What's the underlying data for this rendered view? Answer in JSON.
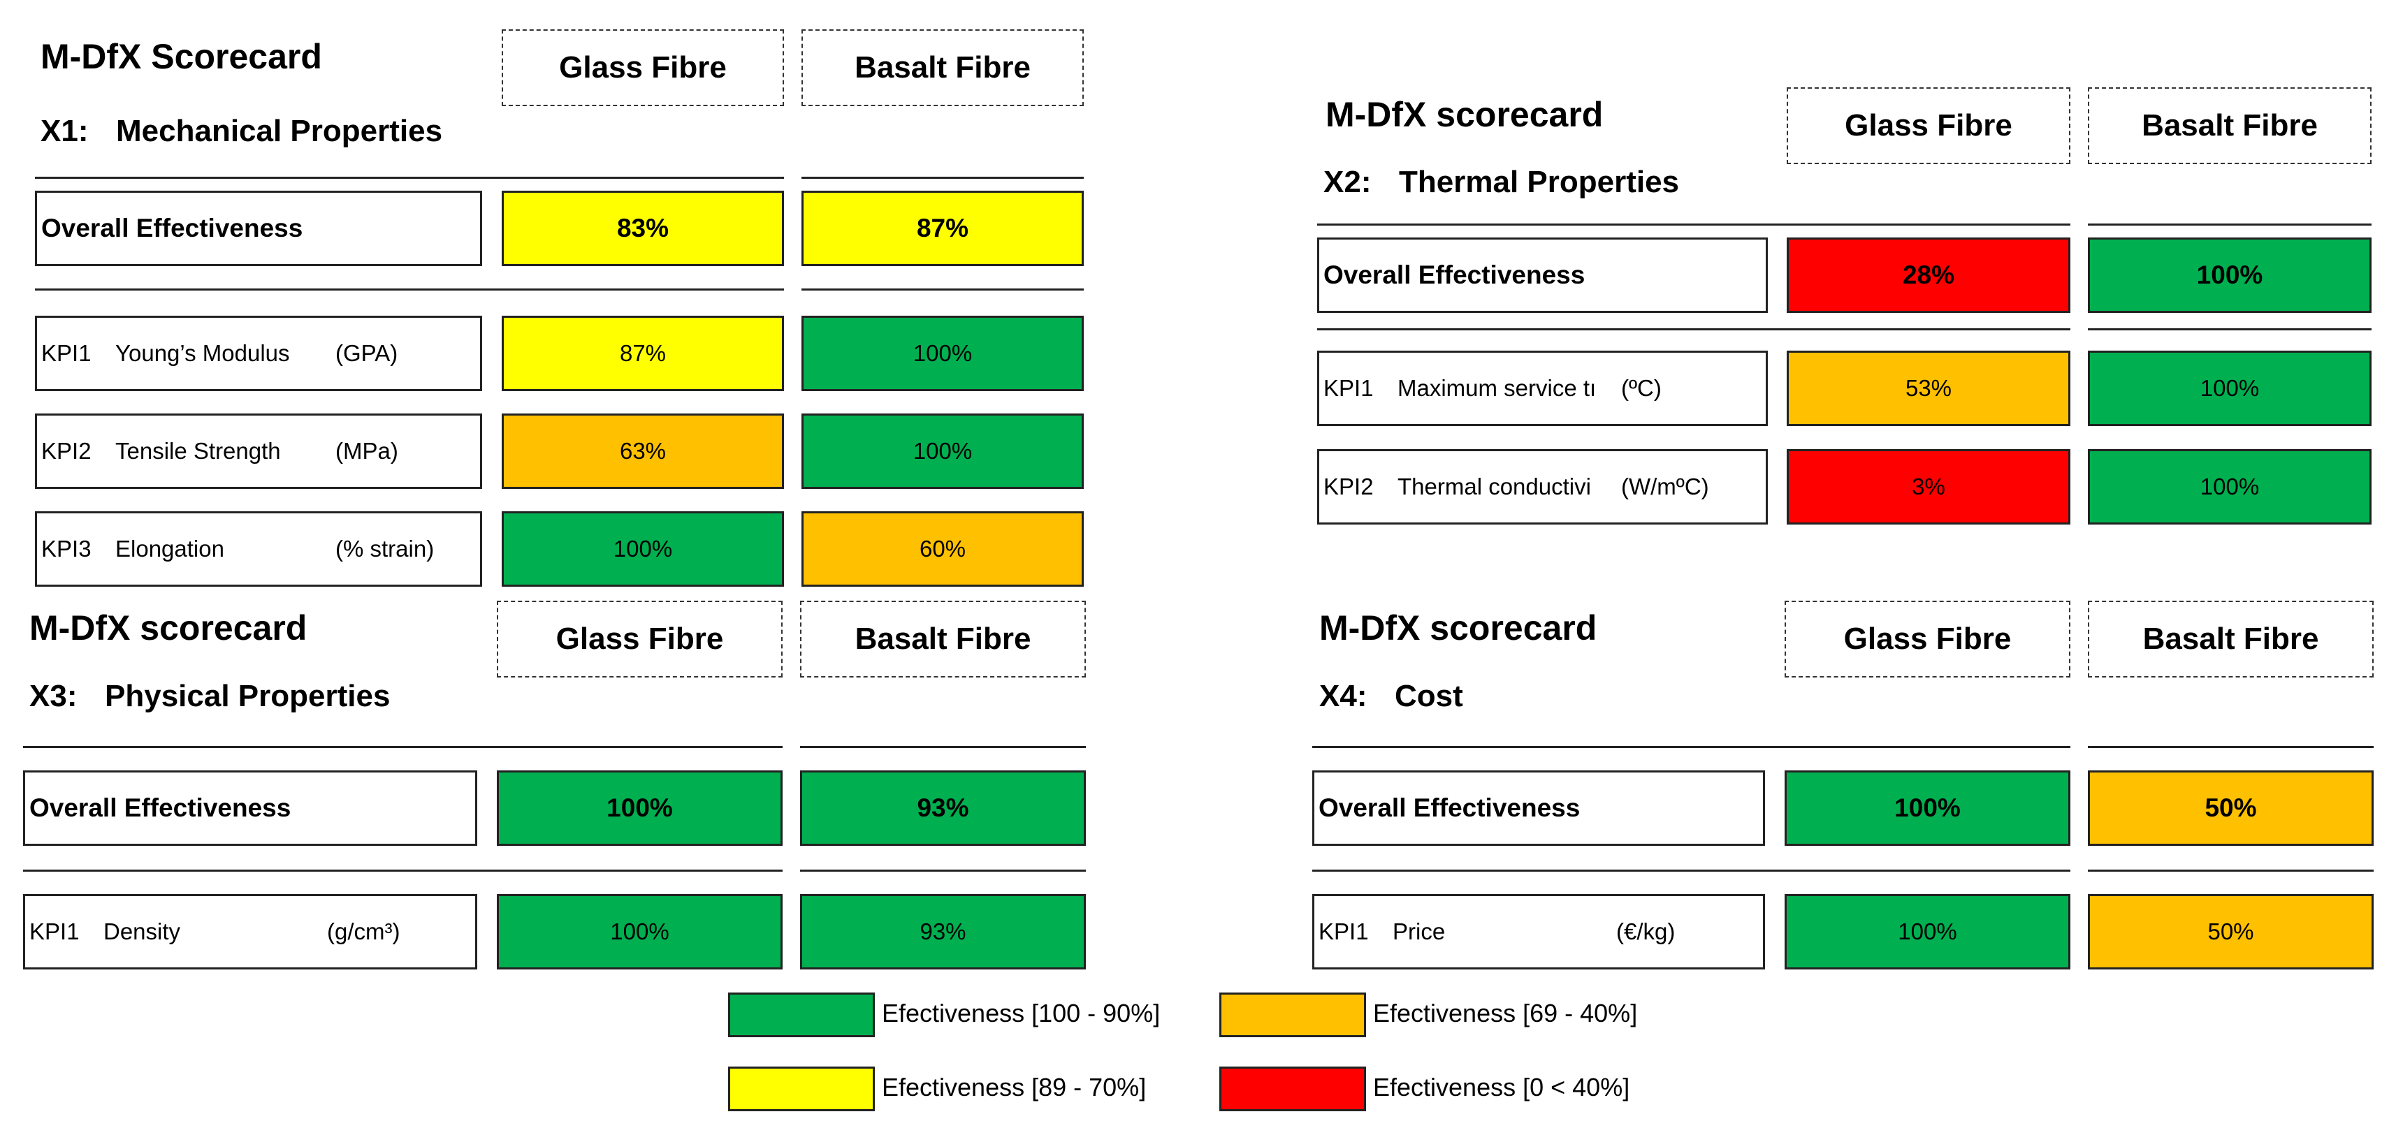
{
  "colors": {
    "green": "#00B050",
    "yellow": "#FFFF00",
    "orange": "#FFC000",
    "red": "#FF0000"
  },
  "panels": [
    {
      "title": "M-DfX Scorecard",
      "code": "X1:",
      "subtitle": "Mechanical Properties",
      "col1": "Glass Fibre",
      "col2": "Basalt Fibre",
      "overall": {
        "label": "Overall Effectiveness",
        "v1": "83%",
        "c1": "yellow",
        "v2": "87%",
        "c2": "yellow"
      },
      "kpis": [
        {
          "id": "KPI1",
          "name": "Young’s Modulus",
          "unit": "(GPA)",
          "v1": "87%",
          "c1": "yellow",
          "v2": "100%",
          "c2": "green"
        },
        {
          "id": "KPI2",
          "name": "Tensile Strength",
          "unit": "(MPa)",
          "v1": "63%",
          "c1": "orange",
          "v2": "100%",
          "c2": "green"
        },
        {
          "id": "KPI3",
          "name": "Elongation",
          "unit": "(% strain)",
          "v1": "100%",
          "c1": "green",
          "v2": "60%",
          "c2": "orange"
        }
      ]
    },
    {
      "title": "M-DfX scorecard",
      "code": "X2:",
      "subtitle": "Thermal Properties",
      "col1": "Glass Fibre",
      "col2": "Basalt Fibre",
      "overall": {
        "label": "Overall Effectiveness",
        "v1": "28%",
        "c1": "red",
        "v2": "100%",
        "c2": "green"
      },
      "kpis": [
        {
          "id": "KPI1",
          "name": "Maximum service tı",
          "unit": "(ºC)",
          "v1": "53%",
          "c1": "orange",
          "v2": "100%",
          "c2": "green"
        },
        {
          "id": "KPI2",
          "name": "Thermal conductivi",
          "unit": "(W/mºC)",
          "v1": "3%",
          "c1": "red",
          "v2": "100%",
          "c2": "green"
        }
      ]
    },
    {
      "title": "M-DfX scorecard",
      "code": "X3:",
      "subtitle": "Physical Properties",
      "col1": "Glass Fibre",
      "col2": "Basalt Fibre",
      "overall": {
        "label": "Overall Effectiveness",
        "v1": "100%",
        "c1": "green",
        "v2": "93%",
        "c2": "green"
      },
      "kpis": [
        {
          "id": "KPI1",
          "name": "Density",
          "unit": "(g/cm³)",
          "v1": "100%",
          "c1": "green",
          "v2": "93%",
          "c2": "green"
        }
      ]
    },
    {
      "title": "M-DfX scorecard",
      "code": "X4:",
      "subtitle": "Cost",
      "col1": "Glass Fibre",
      "col2": "Basalt Fibre",
      "overall": {
        "label": "Overall Effectiveness",
        "v1": "100%",
        "c1": "green",
        "v2": "50%",
        "c2": "orange"
      },
      "kpis": [
        {
          "id": "KPI1",
          "name": "Price",
          "unit": "(€/kg)",
          "v1": "100%",
          "c1": "green",
          "v2": "50%",
          "c2": "orange"
        }
      ]
    }
  ],
  "legend": [
    {
      "label": "Efectiveness [100 - 90%]",
      "color": "green"
    },
    {
      "label": "Efectiveness [69 - 40%]",
      "color": "orange"
    },
    {
      "label": "Efectiveness [89 - 70%]",
      "color": "yellow"
    },
    {
      "label": "Efectiveness  [0 < 40%]",
      "color": "red"
    }
  ]
}
